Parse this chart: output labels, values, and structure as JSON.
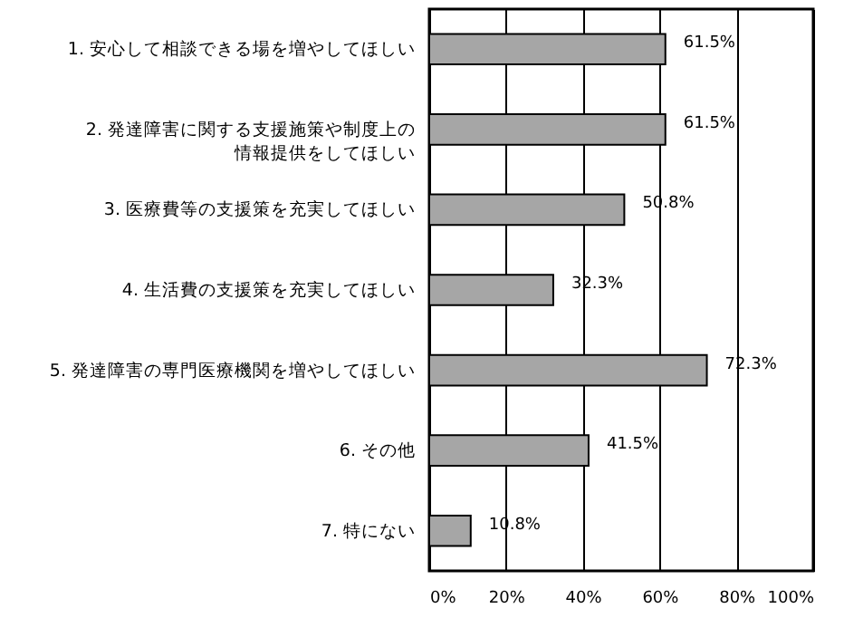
{
  "chart_data": {
    "type": "bar",
    "orientation": "horizontal",
    "categories": [
      "1. 安心して相談できる場を増やしてほしい",
      "2. 発達障害に関する支援施策や制度上の情報提供をしてほしい",
      "3. 医療費等の支援策を充実してほしい",
      "4. 生活費の支援策を充実してほしい",
      "5. 発達障害の専門医療機関を増やしてほしい",
      "6. その他",
      "7. 特にない"
    ],
    "values": [
      61.5,
      61.5,
      50.8,
      32.3,
      72.3,
      41.5,
      10.8
    ],
    "value_labels": [
      "61.5%",
      "61.5%",
      "50.8%",
      "32.3%",
      "72.3%",
      "41.5%",
      "10.8%"
    ],
    "color": "#a6a6a6",
    "xlim": [
      0,
      100
    ],
    "xticks": [
      {
        "value": 0,
        "label": "0%"
      },
      {
        "value": 20,
        "label": "20%"
      },
      {
        "value": 40,
        "label": "40%"
      },
      {
        "value": 60,
        "label": "60%"
      },
      {
        "value": 80,
        "label": "80%"
      },
      {
        "value": 100,
        "label": "100%"
      }
    ],
    "grid": "x"
  }
}
